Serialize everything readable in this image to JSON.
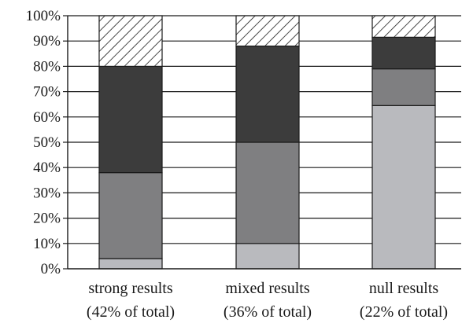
{
  "chart_data": {
    "type": "bar",
    "stacked": true,
    "categories": [
      [
        "strong results",
        "(42% of total)"
      ],
      [
        "mixed results",
        "(36% of total)"
      ],
      [
        "null results",
        "(22% of total)"
      ]
    ],
    "ylim": [
      0,
      100
    ],
    "yticks": [
      "0%",
      "10%",
      "20%",
      "30%",
      "40%",
      "50%",
      "60%",
      "70%",
      "80%",
      "90%",
      "100%"
    ],
    "grid": true,
    "legend": false,
    "series": [
      {
        "values": [
          4,
          10,
          64.5
        ],
        "color": "#b9babe",
        "pattern": "solid"
      },
      {
        "values": [
          34,
          40,
          14.5
        ],
        "color": "#7f7f81",
        "pattern": "solid"
      },
      {
        "values": [
          42,
          38,
          12.5
        ],
        "color": "#3c3c3c",
        "pattern": "solid"
      },
      {
        "values": [
          20,
          12,
          8.5
        ],
        "color": "#ffffff",
        "pattern": "hatch"
      }
    ]
  }
}
